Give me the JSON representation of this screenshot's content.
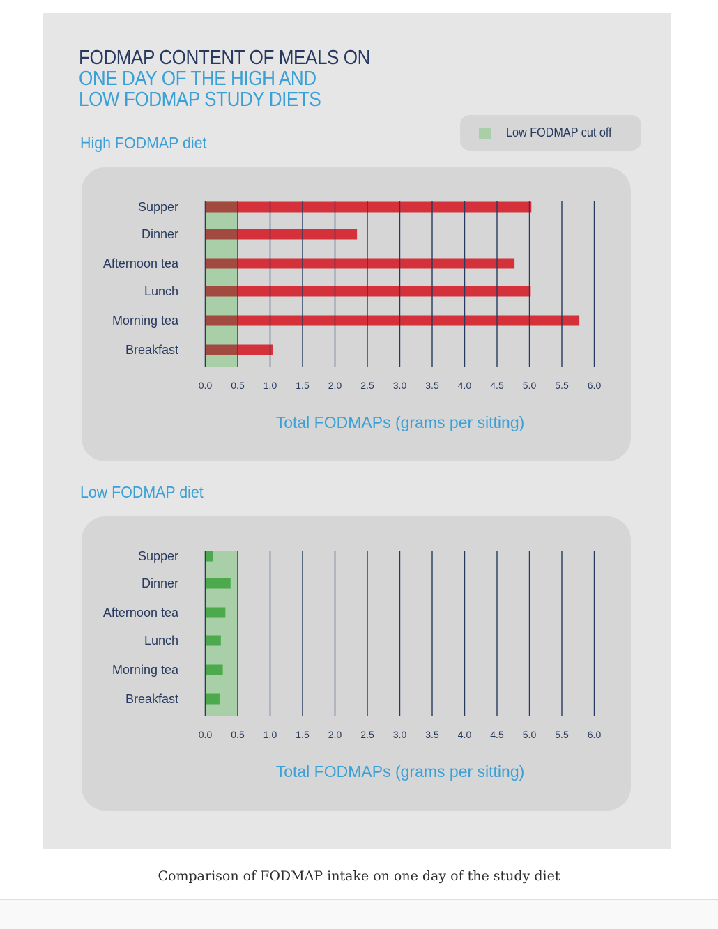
{
  "title": {
    "line1": "FODMAP CONTENT OF MEALS ON",
    "line2": "ONE DAY OF THE HIGH AND",
    "line3": "LOW FODMAP STUDY DIETS"
  },
  "legend": {
    "label": "Low FODMAP cut off",
    "color": "#a9cfa9"
  },
  "colors": {
    "axis_text": "#27395e",
    "axis_title": "#3aa0d6",
    "gridline": "#27395e",
    "cutoff_band": "#a9cfa9",
    "high_bar": "#d4313b",
    "high_bar_in_cutoff": "#a34a40",
    "low_bar": "#4caa4c"
  },
  "caption": "Comparison of FODMAP intake on one day of the study diet",
  "chart_data": [
    {
      "type": "bar",
      "orientation": "horizontal",
      "heading": "High FODMAP diet",
      "categories": [
        "Supper",
        "Dinner",
        "Afternoon tea",
        "Lunch",
        "Morning tea",
        "Breakfast"
      ],
      "values": [
        5.03,
        2.34,
        4.77,
        5.02,
        5.77,
        1.04
      ],
      "xlabel": "Total FODMAPs (grams per sitting)",
      "xlim": [
        0,
        6.0
      ],
      "xticks": [
        "0.0",
        "0.5",
        "1.0",
        "1.5",
        "2.0",
        "2.5",
        "3.0",
        "3.5",
        "4.0",
        "4.5",
        "5.0",
        "5.5",
        "6.0"
      ],
      "cutoff": 0.5,
      "bar_color": "#d4313b",
      "grid": true
    },
    {
      "type": "bar",
      "orientation": "horizontal",
      "heading": "Low FODMAP diet",
      "categories": [
        "Supper",
        "Dinner",
        "Afternoon tea",
        "Lunch",
        "Morning tea",
        "Breakfast"
      ],
      "values": [
        0.12,
        0.39,
        0.31,
        0.24,
        0.27,
        0.22
      ],
      "xlabel": "Total FODMAPs (grams per sitting)",
      "xlim": [
        0,
        6.0
      ],
      "xticks": [
        "0.0",
        "0.5",
        "1.0",
        "1.5",
        "2.0",
        "2.5",
        "3.0",
        "3.5",
        "4.0",
        "4.5",
        "5.0",
        "5.5",
        "6.0"
      ],
      "cutoff": 0.5,
      "bar_color": "#4caa4c",
      "grid": true
    }
  ]
}
